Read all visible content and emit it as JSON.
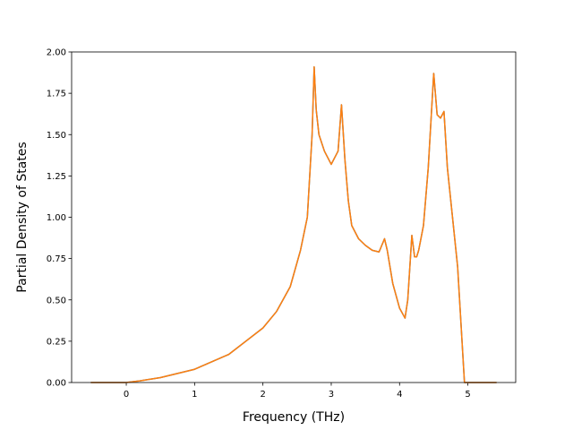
{
  "chart_data": {
    "type": "line",
    "title": "",
    "xlabel": "Frequency (THz)",
    "ylabel": "Partial Density of States",
    "xlim": [
      -0.8,
      5.7
    ],
    "ylim": [
      0,
      2.0
    ],
    "xticks": [
      0,
      1,
      2,
      3,
      4,
      5
    ],
    "xtick_labels": [
      "0",
      "1",
      "2",
      "3",
      "4",
      "5"
    ],
    "yticks": [
      0,
      0.25,
      0.5,
      0.75,
      1.0,
      1.25,
      1.5,
      1.75,
      2.0
    ],
    "ytick_labels": [
      "0.00",
      "0.25",
      "0.50",
      "0.75",
      "1.00",
      "1.25",
      "1.50",
      "1.75",
      "2.00"
    ],
    "grid": false,
    "legend": "none",
    "series": [
      {
        "color": "#1f77b4",
        "x": [
          -0.52,
          0.0,
          0.2,
          0.5,
          1.0,
          1.5,
          2.0,
          2.2,
          2.4,
          2.55,
          2.65,
          2.72,
          2.75,
          2.78,
          2.82,
          2.9,
          3.0,
          3.1,
          3.15,
          3.2,
          3.25,
          3.3,
          3.4,
          3.5,
          3.6,
          3.7,
          3.78,
          3.82,
          3.9,
          4.0,
          4.08,
          4.12,
          4.18,
          4.22,
          4.25,
          4.28,
          4.35,
          4.42,
          4.5,
          4.55,
          4.6,
          4.65,
          4.7,
          4.85,
          4.95,
          5.0,
          5.42
        ],
        "y": [
          0.0,
          0.0,
          0.01,
          0.03,
          0.08,
          0.17,
          0.33,
          0.43,
          0.58,
          0.8,
          1.0,
          1.5,
          1.91,
          1.65,
          1.5,
          1.4,
          1.32,
          1.4,
          1.68,
          1.35,
          1.1,
          0.95,
          0.87,
          0.83,
          0.8,
          0.79,
          0.87,
          0.8,
          0.6,
          0.45,
          0.39,
          0.5,
          0.89,
          0.76,
          0.76,
          0.8,
          0.95,
          1.3,
          1.87,
          1.62,
          1.6,
          1.64,
          1.3,
          0.7,
          0.0,
          0.0,
          0.0
        ]
      },
      {
        "color": "#ff7f0e",
        "x": [
          -0.52,
          0.0,
          0.2,
          0.5,
          1.0,
          1.5,
          2.0,
          2.2,
          2.4,
          2.55,
          2.65,
          2.72,
          2.75,
          2.78,
          2.82,
          2.9,
          3.0,
          3.1,
          3.15,
          3.2,
          3.25,
          3.3,
          3.4,
          3.5,
          3.6,
          3.7,
          3.78,
          3.82,
          3.9,
          4.0,
          4.08,
          4.12,
          4.18,
          4.22,
          4.25,
          4.28,
          4.35,
          4.42,
          4.5,
          4.55,
          4.6,
          4.65,
          4.7,
          4.85,
          4.95,
          5.0,
          5.42
        ],
        "y": [
          0.0,
          0.0,
          0.01,
          0.03,
          0.08,
          0.17,
          0.33,
          0.43,
          0.58,
          0.8,
          1.0,
          1.5,
          1.91,
          1.65,
          1.5,
          1.4,
          1.32,
          1.4,
          1.68,
          1.35,
          1.1,
          0.95,
          0.87,
          0.83,
          0.8,
          0.79,
          0.87,
          0.8,
          0.6,
          0.45,
          0.39,
          0.5,
          0.89,
          0.76,
          0.76,
          0.8,
          0.95,
          1.3,
          1.87,
          1.62,
          1.6,
          1.64,
          1.3,
          0.7,
          0.0,
          0.0,
          0.0
        ]
      }
    ]
  }
}
